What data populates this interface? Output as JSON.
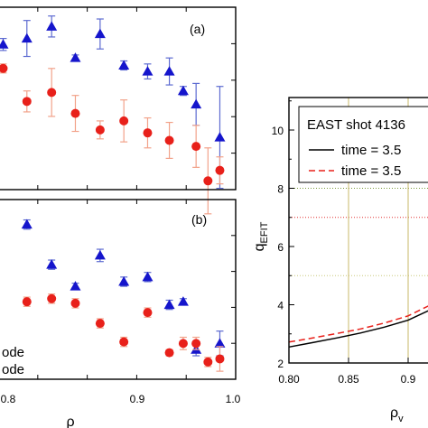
{
  "chart_data": [
    {
      "type": "scatter",
      "panel_label": "(a)",
      "x": [
        0.765,
        0.789,
        0.814,
        0.838,
        0.863,
        0.887,
        0.911,
        0.933,
        0.96,
        0.984
      ],
      "x_partial": 0.765,
      "xlim": [
        0.76,
        1.0
      ],
      "grid": false,
      "series": [
        {
          "marker": "triangle",
          "color": "#1515cc",
          "errorbar_color": "#5d6bd1",
          "x": [
            0.765,
            0.789,
            0.814,
            0.838,
            0.863,
            0.887,
            0.911,
            0.933,
            0.947,
            0.96,
            0.984
          ],
          "y": [
            0.86,
            0.9,
            0.98,
            0.77,
            0.93,
            0.72,
            0.68,
            0.68,
            0.55,
            0.46,
            0.24
          ],
          "err": [
            0.04,
            0.12,
            0.07,
            0.02,
            0.1,
            0.03,
            0.05,
            0.09,
            0.03,
            0.14,
            0.34
          ]
        },
        {
          "marker": "circle",
          "color": "#e8201a",
          "errorbar_color": "#f2a28a",
          "x": [
            0.765,
            0.789,
            0.814,
            0.838,
            0.863,
            0.887,
            0.911,
            0.933,
            0.96,
            0.972,
            0.984
          ],
          "y": [
            0.7,
            0.48,
            0.54,
            0.4,
            0.29,
            0.35,
            0.27,
            0.22,
            0.18,
            -0.05,
            0.02
          ],
          "err": [
            0.03,
            0.07,
            0.16,
            0.12,
            0.06,
            0.14,
            0.1,
            0.12,
            0.14,
            0.22,
            0.09
          ]
        }
      ]
    },
    {
      "type": "scatter",
      "panel_label": "(b)",
      "xlim": [
        0.76,
        1.0
      ],
      "xticks": [
        "0.9",
        "1.0"
      ],
      "xticks_partial": [
        "0.8"
      ],
      "xlabel": "ρ",
      "grid": false,
      "legend_partial": [
        "ode",
        "ode"
      ],
      "series": [
        {
          "marker": "triangle",
          "color": "#1515cc",
          "errorbar_color": "#5d6bd1",
          "x": [
            0.789,
            0.814,
            0.838,
            0.863,
            0.887,
            0.911,
            0.933,
            0.947,
            0.96,
            0.984
          ],
          "y": [
            0.92,
            0.66,
            0.52,
            0.72,
            0.55,
            0.58,
            0.4,
            0.42,
            0.11,
            0.15
          ],
          "err": [
            0.03,
            0.03,
            0.02,
            0.04,
            0.03,
            0.03,
            0.03,
            0.02,
            0.04,
            0.08
          ]
        },
        {
          "marker": "circle",
          "color": "#e8201a",
          "errorbar_color": "#f2a28a",
          "x": [
            0.789,
            0.814,
            0.838,
            0.863,
            0.887,
            0.911,
            0.933,
            0.947,
            0.96,
            0.972,
            0.984
          ],
          "y": [
            0.42,
            0.44,
            0.41,
            0.28,
            0.16,
            0.35,
            0.09,
            0.15,
            0.15,
            0.03,
            0.05
          ],
          "err": [
            0.03,
            0.03,
            0.03,
            0.03,
            0.03,
            0.03,
            0.02,
            0.04,
            0.04,
            0.03,
            0.08
          ]
        }
      ]
    },
    {
      "type": "line",
      "xlim": [
        0.8,
        0.93
      ],
      "ylim": [
        2,
        11
      ],
      "xticks": [
        "0.80",
        "0.85",
        "0.9"
      ],
      "yticks": [
        "2",
        "4",
        "6",
        "8",
        "10"
      ],
      "ylabel_base": "q",
      "ylabel_sub": "EFIT",
      "xlabel_base": "ρ",
      "xlabel_sub": "v",
      "grid": "dotted, at y = 5, 7, 8 and x = 0.85, 0.9",
      "legend": {
        "placement": "top-right (clipped)",
        "title": "EAST shot 4136",
        "entries": [
          {
            "label": "time = 3.5",
            "style": "solid",
            "color": "#000000"
          },
          {
            "label": "time = 3.5",
            "style": "dashed",
            "color": "#e8201a"
          }
        ]
      },
      "series": [
        {
          "style": "solid",
          "color": "#000000",
          "x": [
            0.8,
            0.82,
            0.84,
            0.86,
            0.88,
            0.9,
            0.92,
            0.93
          ],
          "y": [
            2.55,
            2.7,
            2.86,
            3.03,
            3.23,
            3.47,
            3.85,
            4.5
          ]
        },
        {
          "style": "dashed",
          "color": "#e8201a",
          "x": [
            0.8,
            0.82,
            0.84,
            0.86,
            0.88,
            0.9,
            0.92,
            0.93
          ],
          "y": [
            2.72,
            2.86,
            3.01,
            3.17,
            3.37,
            3.62,
            4.02,
            4.6
          ]
        }
      ],
      "gridline_colors": {
        "y5": "#c9c97a",
        "y7": "#e03030",
        "y8": "#7a9a3a",
        "x": "#c9b86a"
      }
    }
  ]
}
